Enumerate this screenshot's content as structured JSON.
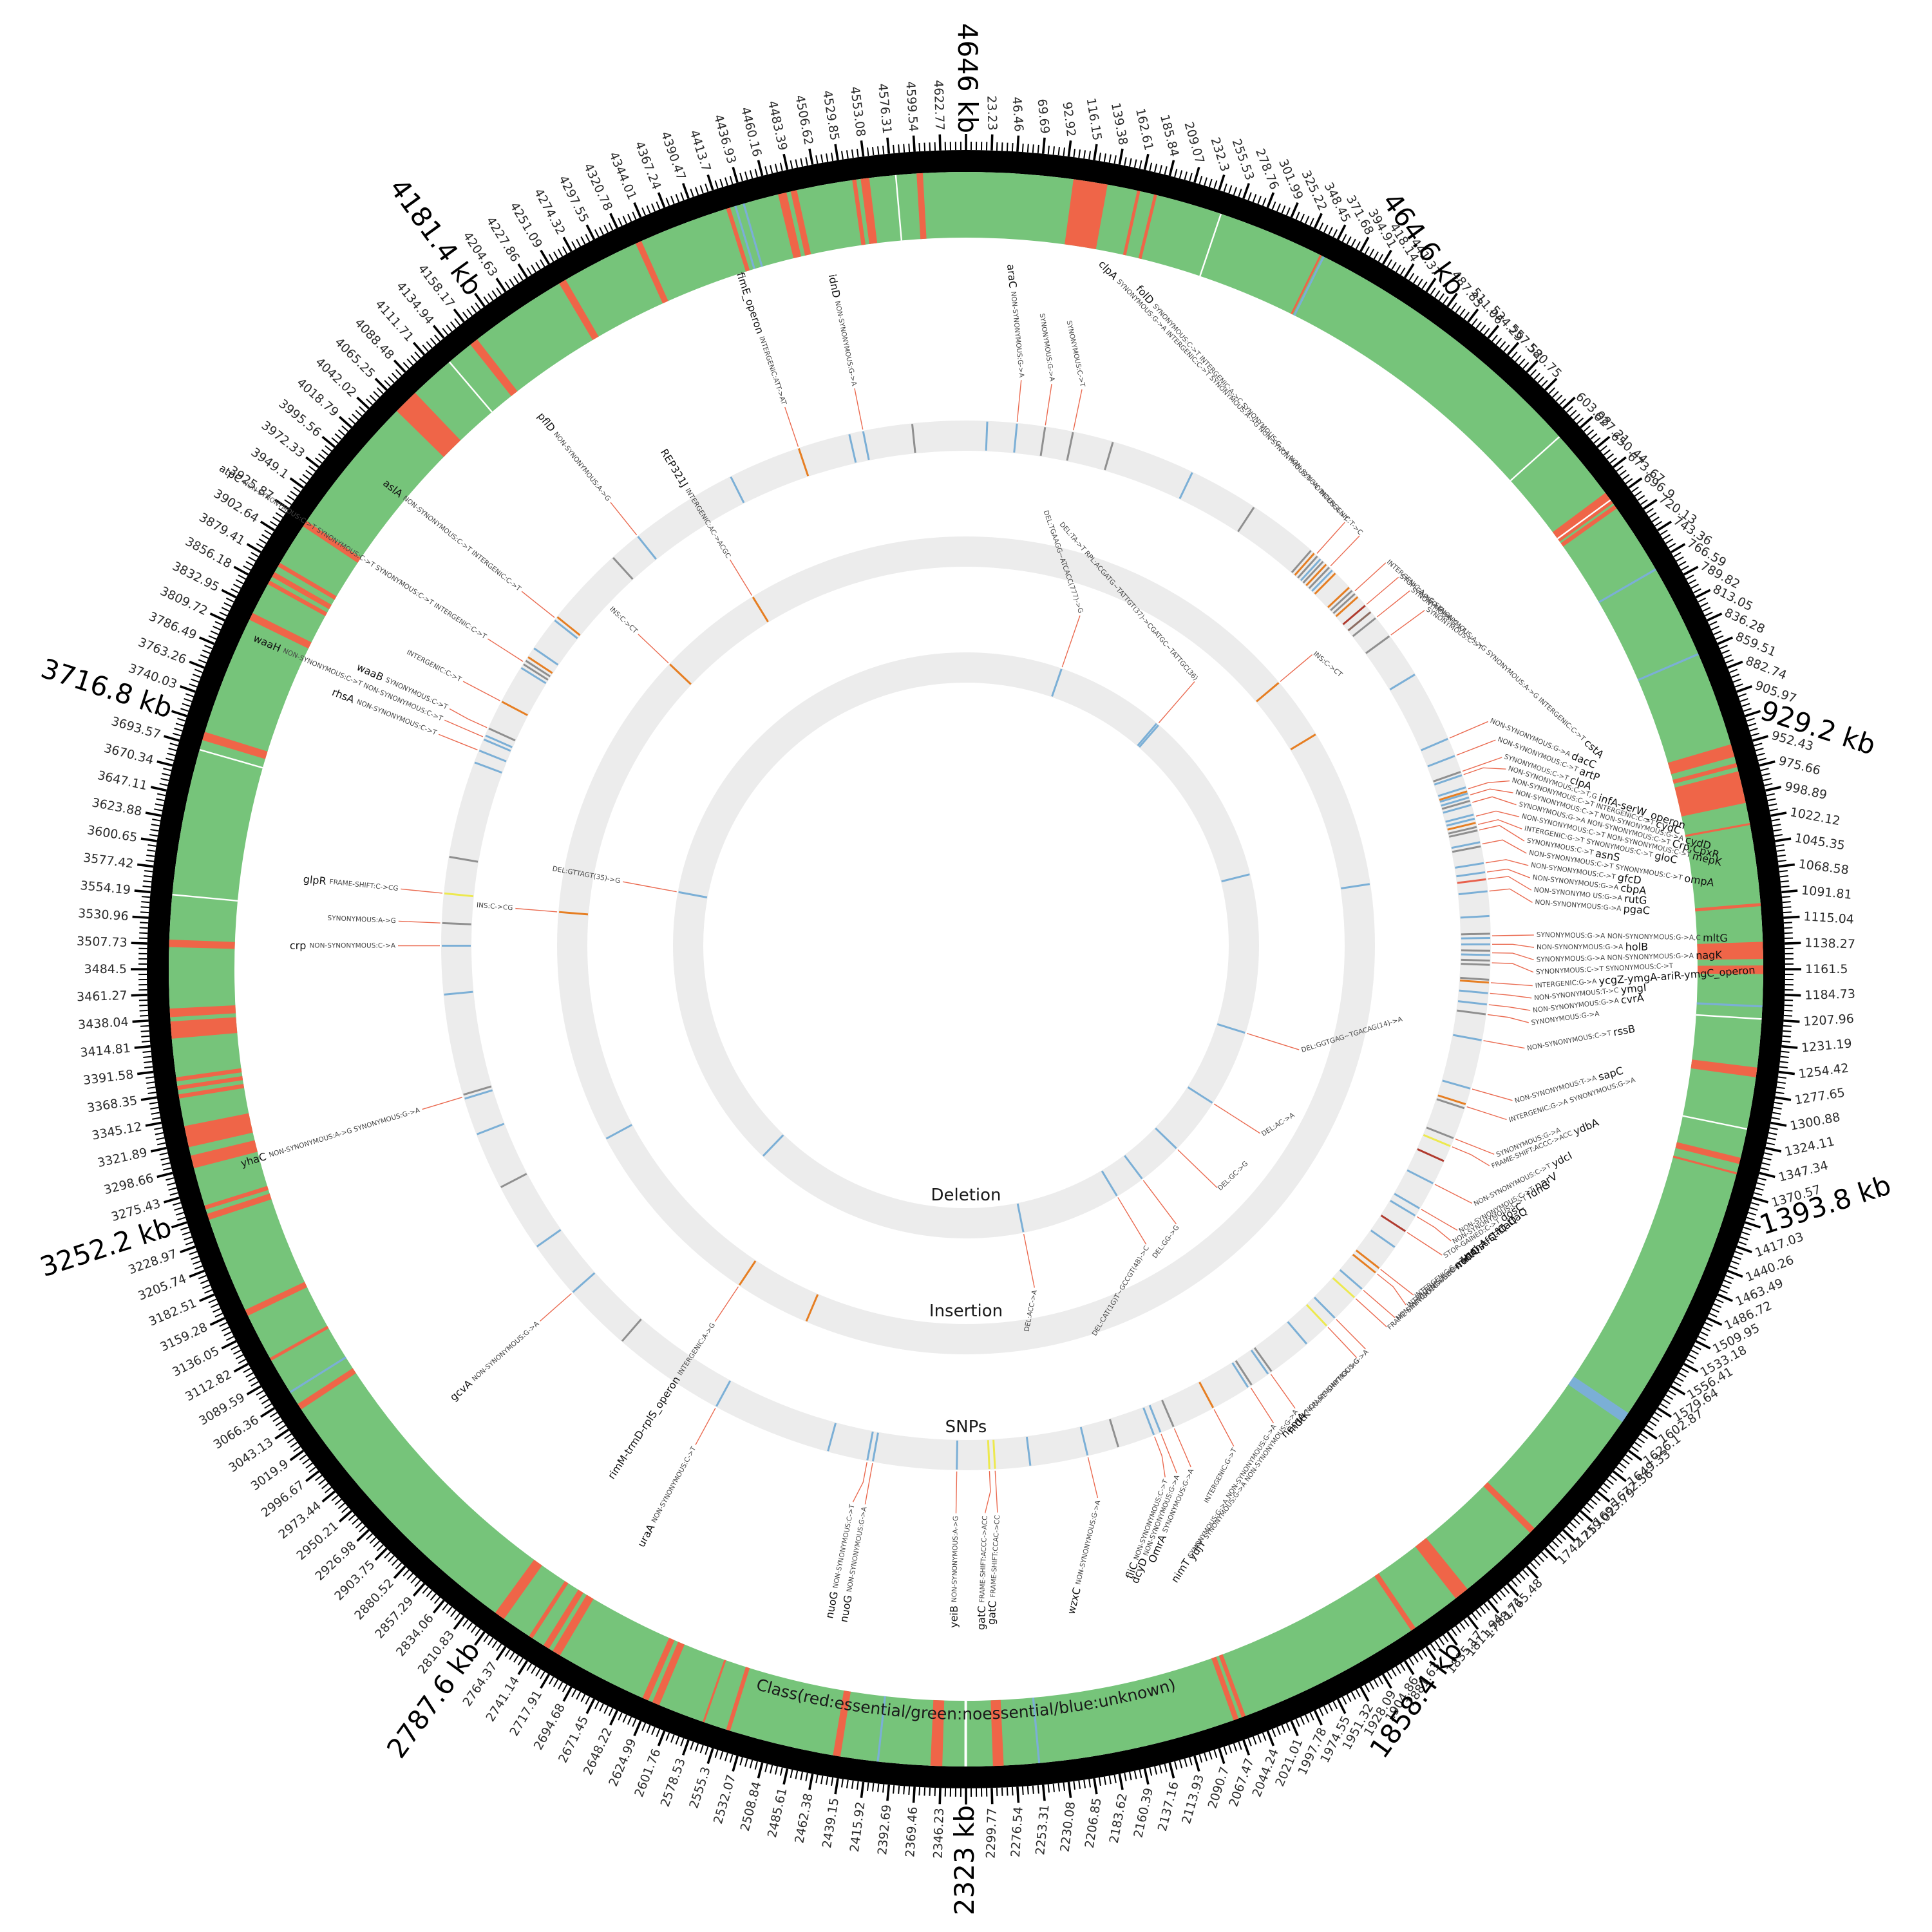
{
  "figure": {
    "legend_text": "Class(red:essential/green:noessential/blue:unknown)",
    "ring_labels": {
      "snp": "SNPs",
      "insertion": "Insertion",
      "deletion": "Deletion"
    }
  },
  "chart_data": {
    "type": "circular_genome_map",
    "units": "kb",
    "genome_length_kb": 4646,
    "major_label_interval_kb": 464.6,
    "labeled_tick_interval_kb": 23.23,
    "minor_tick_interval_kb": 4.646,
    "major_labels": [
      "4646 kb",
      "464.6 kb",
      "929.2 kb",
      "1393.8 kb",
      "1858.4 kb",
      "2323 kb",
      "2787.6 kb",
      "3252.2 kb",
      "3716.8 kb",
      "4181.4 kb"
    ],
    "legend": "Class(red:essential/green:noessential/blue:unknown)",
    "ring_order_outer_to_inner": [
      "class",
      "SNPs",
      "Insertion",
      "Deletion"
    ],
    "class_ring": {
      "base_class": "noessential",
      "colors": {
        "essential": "#ef6548",
        "noessential": "#76c47a",
        "unknown": "#7bafd6",
        "gap": "#ffffff"
      },
      "essential_segments_kb": [
        [
          100,
          132
        ],
        [
          160,
          163
        ],
        [
          176,
          179
        ],
        [
          340,
          342
        ],
        [
          688,
          700
        ],
        [
          702,
          706
        ],
        [
          950,
          962
        ],
        [
          968,
          972
        ],
        [
          976,
          1006
        ],
        [
          1025,
          1027
        ],
        [
          1100,
          1103
        ],
        [
          1136,
          1152
        ],
        [
          1158,
          1166
        ],
        [
          1253,
          1262
        ],
        [
          1338,
          1344
        ],
        [
          1352,
          1354
        ],
        [
          1736,
          1742
        ],
        [
          1820,
          1834
        ],
        [
          1880,
          1885
        ],
        [
          2058,
          2062
        ],
        [
          2065,
          2070
        ],
        [
          2288,
          2298
        ],
        [
          2345,
          2356
        ],
        [
          2440,
          2447
        ],
        [
          2545,
          2549
        ],
        [
          2570,
          2572
        ],
        [
          2615,
          2622
        ],
        [
          2626,
          2632
        ],
        [
          2718,
          2726
        ],
        [
          2730,
          2736
        ],
        [
          2748,
          2752
        ],
        [
          2780,
          2790
        ],
        [
          3052,
          3058
        ],
        [
          3105,
          3108
        ],
        [
          3152,
          3158
        ],
        [
          3248,
          3254
        ],
        [
          3258,
          3262
        ],
        [
          3298,
          3310
        ],
        [
          3318,
          3338
        ],
        [
          3364,
          3368
        ],
        [
          3372,
          3376
        ],
        [
          3380,
          3384
        ],
        [
          3420,
          3436
        ],
        [
          3440,
          3448
        ],
        [
          3505,
          3512
        ],
        [
          3700,
          3708
        ],
        [
          3820,
          3827
        ],
        [
          3857,
          3861
        ],
        [
          3865,
          3870
        ],
        [
          3876,
          3880
        ],
        [
          3920,
          3926
        ],
        [
          4058,
          4082
        ],
        [
          4150,
          4158
        ],
        [
          4250,
          4257
        ],
        [
          4330,
          4336
        ],
        [
          4420,
          4424
        ],
        [
          4470,
          4478
        ],
        [
          4482,
          4488
        ],
        [
          4540,
          4544
        ],
        [
          4548,
          4556
        ],
        [
          4600,
          4606
        ]
      ],
      "unknown_segments_kb": [
        [
          343,
          345
        ],
        [
          772,
          774
        ],
        [
          860,
          862
        ],
        [
          1195,
          1197
        ],
        [
          1598,
          1608
        ],
        [
          2254,
          2256
        ],
        [
          2404,
          2406
        ],
        [
          3070,
          3072
        ],
        [
          4428,
          4430
        ],
        [
          4436,
          4438
        ]
      ],
      "gap_segments_kb": [
        [
          240,
          241.5
        ],
        [
          620,
          621.5
        ],
        [
          695.5,
          697
        ],
        [
          1207,
          1208.5
        ],
        [
          1310,
          1311.5
        ],
        [
          2322,
          2324.5
        ],
        [
          3553,
          3554.5
        ],
        [
          3690,
          3691.5
        ],
        [
          4124,
          4125.5
        ],
        [
          4580,
          4581.5
        ]
      ]
    },
    "mutation_colors": {
      "NON-SYNONYMOUS": "#7bafd6",
      "SYNONYMOUS": "#8f8f8f",
      "INTERGENIC": "#e67e22",
      "FRAME-SHIFT": "#ede94e",
      "STOP-GAINED": "#b03a2e",
      "INS": "#e67e22",
      "DEL": "#7bafd6",
      "RPL": "#7bafd6",
      "DEFAULT": "#e8604c"
    },
    "annotations": [
      [
        "araC",
        72,
        "snp",
        [
          "NON-SYNONYMOUS:G->A"
        ]
      ],
      [
        "",
        112,
        "snp",
        [
          "SYNONYMOUS:G->A"
        ]
      ],
      [
        "",
        152,
        "snp",
        [
          "SYNONYMOUS:C->T"
        ]
      ],
      [
        "",
        246,
        "deletion",
        [
          "DEL:TGAAGG~ATCACC(777)->G"
        ]
      ],
      [
        "",
        528,
        "deletion",
        [
          "DEL:TA->T",
          "RPL:ACGATG~TATTGT(37)->CGATGC~TATTGC(36)"
        ]
      ],
      [
        "folD",
        540,
        "snp",
        [
          "SYNONYMOUS:C->T",
          "INTERGENIC:A->C",
          "SYNONYMOUS:G->A",
          "NON-SYNONYMOUS:A->T"
        ]
      ],
      [
        "clpA",
        566,
        "snp",
        [
          "SYNONYMOUS:G->A",
          "INTERGENIC:C->T",
          "SYNONYMOUS:A->G",
          "NON-SYNONYMOUS:T->C",
          "INTERGENIC:T->C"
        ]
      ],
      [
        "cstA",
        615,
        "snp",
        [
          "INTERGENIC:A->G",
          "SYNONYMOUS:A->G",
          "SYNONYMOUS:A->G",
          "INTERGENIC:C->T"
        ]
      ],
      [
        "",
        640,
        "snp",
        [
          "STOP-GAINED:G->A"
        ]
      ],
      [
        "",
        645,
        "insertion",
        [
          "INS:C->CT"
        ]
      ],
      [
        "",
        663,
        "snp",
        [
          "SYNONYMOUS:G->A"
        ]
      ],
      [
        "",
        695,
        "snp",
        [
          "SYNONYMOUS:C->T"
        ]
      ],
      [
        "dacC",
        862,
        "snp",
        [
          "NON-SYNONYMOUS:G->A"
        ]
      ],
      [
        "artP",
        888,
        "snp",
        [
          "NON-SYNONYMOUS:C->T"
        ]
      ],
      [
        "clpA",
        912,
        "snp",
        [
          "SYNONYMOUS:C->T"
        ]
      ],
      [
        "infA-serW_operon",
        917,
        "snp",
        [
          "NON-SYNONYMOUS:C->T,G"
        ]
      ],
      [
        "cydC",
        938,
        "snp",
        [
          "NON-SYNONYMOUS:C->T",
          "INTERGENIC:C->T"
        ]
      ],
      [
        "cydD",
        947,
        "snp",
        [
          "NON-SYNONYMOUS:C->T",
          "NON-SYNONYMOUS:G->A"
        ]
      ],
      [
        "Crp,CpxR",
        958,
        "snp",
        [
          "SYNONYMOUS:G->A",
          "NON-SYNONYMOUS:C->T"
        ]
      ],
      [
        "mepK",
        978,
        "snp",
        [
          "NON-SYNONYMOUS:C->T",
          "NON-SYNONYMOUS:C->T"
        ]
      ],
      [
        "gloC",
        990,
        "snp",
        [
          "INTERGENIC:G->T",
          "SYNONYMOUS:C->T"
        ]
      ],
      [
        "asnS",
        998,
        "snp",
        [
          "SYNONYMOUS:C->T"
        ]
      ],
      [
        "ompA",
        1018,
        "snp",
        [
          "NON-SYNONYMOUS:C->T",
          "SYNONYMOUS:C->T"
        ]
      ],
      [
        "gfcD",
        1045,
        "snp",
        [
          "NON-SYNONYMOUS:C->T"
        ]
      ],
      [
        "cbpA",
        1058,
        "snp",
        [
          "NON-SYNONYMOUS:G->A"
        ]
      ],
      [
        "rutG",
        1068,
        "snp",
        [
          "NON-SYNONYMO US:G->A"
        ]
      ],
      [
        "pgaC",
        1085,
        "snp",
        [
          "NON-SYNONYMOUS:G->A"
        ]
      ],
      [
        "mltG",
        1148,
        "snp",
        [
          "SYNONYMOUS:G->A",
          "NON-SYNONYMOUS:G->A,C"
        ]
      ],
      [
        "holB",
        1160,
        "snp",
        [
          "NON-SYNONYMOUS:G->A"
        ]
      ],
      [
        "nagK",
        1172,
        "snp",
        [
          "SYNONYMOUS:G->A",
          "NON-SYNONYMOUS:G->A"
        ]
      ],
      [
        "",
        1186,
        "snp",
        [
          "SYNONYMOUS:C->T",
          "SYNONYMOUS:C->T"
        ]
      ],
      [
        "ycgZ-ymgA-ariR-ymgC_operon",
        1214,
        "snp",
        [
          "INTERGENIC:G->A"
        ]
      ],
      [
        "ymgI",
        1229,
        "snp",
        [
          "NON-SYNONYMOUS:T->C"
        ]
      ],
      [
        "cvrA",
        1245,
        "snp",
        [
          "NON-SYNONYMOUS:G->A"
        ]
      ],
      [
        "",
        1259,
        "snp",
        [
          "SYNONYMOUS:G->A"
        ]
      ],
      [
        "rssB",
        1296,
        "snp",
        [
          "NON-SYNONYMOUS:C->T"
        ]
      ],
      [
        "sapC",
        1366,
        "snp",
        [
          "NON-SYNONYMOUS:T->A"
        ]
      ],
      [
        "",
        1386,
        "deletion",
        [
          "DEL:GGTGAG~TGACAG(14)->A"
        ]
      ],
      [
        "",
        1392,
        "snp",
        [
          "INTERGENIC:G->A",
          "SYNONYMOUS:G->A"
        ]
      ],
      [
        "",
        1440,
        "snp",
        [
          "SYNONYMOUS:G->A"
        ]
      ],
      [
        "ydbA",
        1452,
        "snp",
        [
          "FRAME-SHIFT:ACCC->ACC"
        ]
      ],
      [
        "ydcI",
        1510,
        "snp",
        [
          "NON-SYNONYMOUS:C->T"
        ]
      ],
      [
        "narV",
        1550,
        "snp",
        [
          "NON-SYNONYMOUS:C->T"
        ]
      ],
      [
        "fdnG",
        1562,
        "snp",
        [
          "NON-SYNONYMOUS:C->T"
        ]
      ],
      [
        "",
        1582,
        "deletion",
        [
          "DEL:AC->A"
        ]
      ],
      [
        "dosC",
        1588,
        "snp",
        [
          "STOP-GAINED:C->T"
        ]
      ],
      [
        "nohA-stfQ-tfaQ",
        1652,
        "snp",
        [
          "INTERGENIC:G->T"
        ]
      ],
      [
        "nohA-stfQ-tfaQ",
        1660,
        "snp",
        [
          "INTERGENIC:T->C"
        ]
      ],
      [
        "intQ",
        1690,
        "snp",
        [
          "NON-SYNONYMOUS:T->C"
        ]
      ],
      [
        "mlc",
        1706,
        "snp",
        [
          "FRAME-SHIFT:GCCC->GCC"
        ]
      ],
      [
        "",
        1729,
        "deletion",
        [
          "DEL:GC->G"
        ]
      ],
      [
        "nemA",
        1746,
        "snp",
        [
          "NON-SYNONYMOUS:G->A"
        ]
      ],
      [
        "mdtK",
        1762,
        "snp",
        [
          "FRAME-SHIFT:GC->G"
        ]
      ],
      [
        "",
        1845,
        "deletion",
        [
          "DEL:GG->G"
        ]
      ],
      [
        "ydjY",
        1866,
        "snp",
        [
          "SYNONYMOUS:G->A",
          "NON-SYNONYMOUS:G->A"
        ]
      ],
      [
        "nimT",
        1900,
        "snp",
        [
          "SYNONYMOUS:G->A",
          "NON-SYNONYMOUS:G->A"
        ]
      ],
      [
        "",
        1922,
        "deletion",
        [
          "DEL:CAT(1G)T~GCCGT(48)->C"
        ]
      ],
      [
        "",
        1960,
        "snp",
        [
          "INTERGENIC:G->T"
        ]
      ],
      [
        "OmrA",
        2022,
        "snp",
        [
          "SYNONYMOUS:G->A"
        ]
      ],
      [
        "dcyD",
        2042,
        "snp",
        [
          "NON-SYNONYMOUS:G->A"
        ]
      ],
      [
        "fliC",
        2052,
        "snp",
        [
          "NON-SYNONYMOUS:C->T"
        ]
      ],
      [
        "wzxC",
        2150,
        "snp",
        [
          "NON-SYNONYMOUS:G->A"
        ]
      ],
      [
        "",
        2177,
        "deletion",
        [
          "DEL:ACC->A"
        ]
      ],
      [
        "gatC",
        2282,
        "snp",
        [
          "FRAME-SHIFT:CCAC->CC"
        ]
      ],
      [
        "gatC",
        2290,
        "snp",
        [
          "FRAME-SHIFT:ACCC->ACC"
        ]
      ],
      [
        "yeiB",
        2336,
        "snp",
        [
          "NON-SYNONYMOUS:A->G"
        ]
      ],
      [
        "nuoG",
        2455,
        "snp",
        [
          "NON-SYNONYMOUS:G->A"
        ]
      ],
      [
        "nuoG",
        2463,
        "snp",
        [
          "NON-SYNONYMOUS:C->T"
        ]
      ],
      [
        "uraA",
        2690,
        "snp",
        [
          "NON-SYNONYMOUS:C->T"
        ]
      ],
      [
        "rimM-trmD-rplS_operon",
        2758,
        "insertion",
        [
          "INTERGENIC:A->G"
        ]
      ],
      [
        "gcvA",
        2950,
        "snp",
        [
          "NON-SYNONYMOUS:G->A"
        ]
      ],
      [
        "yhaC",
        3268,
        "snp",
        [
          "NON-SYNONYMOUS:A->G",
          "SYNONYMOUS:G->A"
        ]
      ],
      [
        "crp",
        3484,
        "snp",
        [
          "NON-SYNONYMOUS:C->A"
        ]
      ],
      [
        "",
        3516,
        "snp",
        [
          "SYNONYMOUS:A->G"
        ]
      ],
      [
        "",
        3545,
        "insertion",
        [
          "INS:C->CG"
        ]
      ],
      [
        "glpR",
        3558,
        "snp",
        [
          "FRAME-SHIFT:C->CG"
        ]
      ],
      [
        "",
        3620,
        "deletion",
        [
          "DEL:GTTAGT(35)->G"
        ]
      ],
      [
        "rhsA",
        3766,
        "snp",
        [
          "NON-SYNONYMOUS:C->T"
        ]
      ],
      [
        "waaH",
        3786,
        "snp",
        [
          "NON-SYNONYMOUS:C->T",
          "NON-SYNONYMOUS:C->T"
        ]
      ],
      [
        "waaB",
        3800,
        "snp",
        [
          "SYNONYMOUS:C->T"
        ]
      ],
      [
        "",
        3842,
        "snp",
        [
          "INTERGENIC:C->T"
        ]
      ],
      [
        "atpC",
        3906,
        "snp",
        [
          "NON-SYNONYMOUS:C->T",
          "SYNONYMOUS:C->T",
          "SYNONYMOUS:C->T",
          "INTERGENIC:C->T"
        ]
      ],
      [
        "aslA",
        3982,
        "snp",
        [
          "NON-SYNONYMOUS:C->T",
          "INTERGENIC:C->T"
        ]
      ],
      [
        "",
        4046,
        "insertion",
        [
          "INS:C->CT"
        ]
      ],
      [
        "pflD",
        4146,
        "snp",
        [
          "NON-SYNONYMOUS:A->G"
        ]
      ],
      [
        "REP321J",
        4240,
        "insertion",
        [
          "INTERGENIC:AC->ACGC"
        ]
      ],
      [
        "fimE_operon",
        4406,
        "snp",
        [
          "INTERGENIC:ATT->AT"
        ]
      ],
      [
        "idnD",
        4500,
        "snp",
        [
          "NON-SYNONYMOUS:G->A"
        ]
      ]
    ],
    "extra_tick_colors": {
      "blue": "#7bafd6",
      "gray": "#8f8f8f",
      "orange": "#e67e22",
      "darkred": "#b03a2e",
      "yellow": "#ede94e",
      "brown": "#8d6e63"
    },
    "extra_ticks": {
      "snp": [
        [
          30,
          "blue"
        ],
        [
          210,
          "gray"
        ],
        [
          330,
          "blue"
        ],
        [
          430,
          "gray"
        ],
        [
          652,
          "brown"
        ],
        [
          760,
          "blue"
        ],
        [
          1120,
          "blue"
        ],
        [
          1210,
          "gray"
        ],
        [
          1475,
          "darkred"
        ],
        [
          1615,
          "blue"
        ],
        [
          1800,
          "blue"
        ],
        [
          2105,
          "gray"
        ],
        [
          2232,
          "blue"
        ],
        [
          2520,
          "blue"
        ],
        [
          2852,
          "gray"
        ],
        [
          3032,
          "blue"
        ],
        [
          3130,
          "gray"
        ],
        [
          3212,
          "blue"
        ],
        [
          3415,
          "blue"
        ],
        [
          3610,
          "gray"
        ],
        [
          3748,
          "blue"
        ],
        [
          3930,
          "blue"
        ],
        [
          4100,
          "gray"
        ],
        [
          4302,
          "blue"
        ],
        [
          4480,
          "blue"
        ],
        [
          4570,
          "gray"
        ]
      ],
      "insertion": [
        [
          760,
          "orange"
        ],
        [
          1050,
          "blue"
        ],
        [
          2620,
          "orange"
        ],
        [
          3120,
          "blue"
        ]
      ],
      "deletion": [
        [
          980,
          "blue"
        ],
        [
          2890,
          "blue"
        ]
      ]
    }
  }
}
